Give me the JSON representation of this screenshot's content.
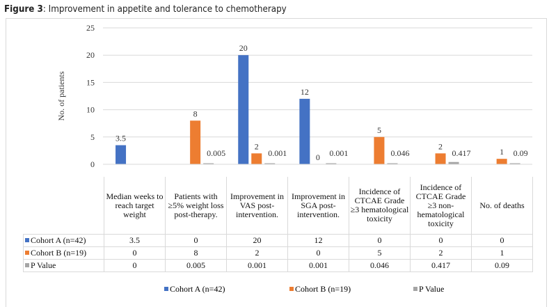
{
  "title_bold": "Figure 3",
  "title_rest": ": Improvement in appetite and tolerance to chemotherapy",
  "chart_data": {
    "type": "bar",
    "ylabel": "No. of patients",
    "ylim": [
      0,
      25
    ],
    "yticks": [
      0,
      5,
      10,
      15,
      20,
      25
    ],
    "grid": true,
    "legend_placement": "bottom",
    "categories": [
      "Median weeks to reach target weight",
      "Patients with ≥5% weight loss post-therapy.",
      "Improvement in VAS post-intervention.",
      "Improvement in SGA post-intervention.",
      "Incidence of CTCAE Grade ≥3 hematological toxicity",
      "Incidence of CTCAE Grade ≥3 non-hematological toxicity",
      "No. of deaths"
    ],
    "series": [
      {
        "name": "Cohort A (n=42)",
        "color": "#4472C4",
        "values": [
          3.5,
          0,
          20,
          12,
          0,
          0,
          0
        ],
        "labels": [
          "3.5",
          "",
          "20",
          "12",
          "",
          "",
          ""
        ]
      },
      {
        "name": "Cohort B (n=19)",
        "color": "#ED7D31",
        "values": [
          0,
          8,
          2,
          0,
          5,
          2,
          1
        ],
        "labels": [
          "",
          "8",
          "2",
          "0",
          "5",
          "2",
          "1"
        ]
      },
      {
        "name": "P Value",
        "color": "#A5A5A5",
        "values": [
          0,
          0.005,
          0.001,
          0.001,
          0.046,
          0.417,
          0.09
        ],
        "labels": [
          "",
          "0.005",
          "0.001",
          "0.001",
          "0.046",
          "0.417",
          "0.09"
        ]
      }
    ],
    "table": {
      "rows": [
        [
          "3.5",
          "0",
          "20",
          "12",
          "0",
          "0",
          "0"
        ],
        [
          "0",
          "8",
          "2",
          "0",
          "5",
          "2",
          "1"
        ],
        [
          "0",
          "0.005",
          "0.001",
          "0.001",
          "0.046",
          "0.417",
          "0.09"
        ]
      ]
    }
  }
}
